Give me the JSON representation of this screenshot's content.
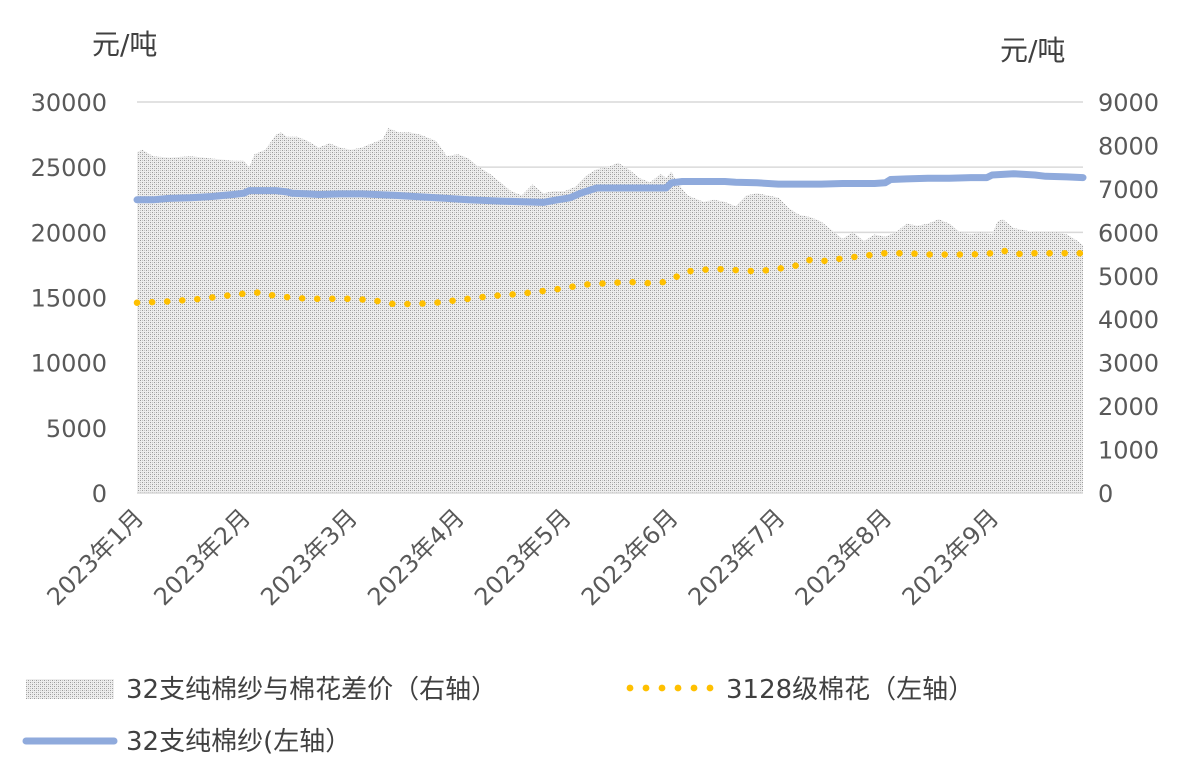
{
  "chart_data": {
    "type": "line",
    "left_unit": "元/吨",
    "right_unit": "元/吨",
    "left_axis": {
      "min": 0,
      "max": 30000,
      "ticks": [
        "0",
        "5000",
        "10000",
        "15000",
        "20000",
        "25000",
        "30000"
      ]
    },
    "right_axis": {
      "min": 0,
      "max": 9000,
      "ticks": [
        "0",
        "1000",
        "2000",
        "3000",
        "4000",
        "5000",
        "6000",
        "7000",
        "8000",
        "9000"
      ]
    },
    "x_labels": [
      "2023年1月",
      "2023年2月",
      "2023年3月",
      "2023年4月",
      "2023年5月",
      "2023年6月",
      "2023年7月",
      "2023年8月",
      "2023年9月"
    ],
    "x_domain": [
      0,
      8.85
    ],
    "series": [
      {
        "name": "32支纯棉纱与棉花差价（右轴）",
        "axis": "right",
        "style": "area",
        "color": "#bfbfbf",
        "points": [
          [
            0,
            7850
          ],
          [
            0.05,
            7900
          ],
          [
            0.15,
            7750
          ],
          [
            0.3,
            7720
          ],
          [
            0.5,
            7750
          ],
          [
            0.7,
            7700
          ],
          [
            0.9,
            7650
          ],
          [
            1.0,
            7650
          ],
          [
            1.05,
            7500
          ],
          [
            1.1,
            7800
          ],
          [
            1.2,
            7900
          ],
          [
            1.3,
            8250
          ],
          [
            1.35,
            8300
          ],
          [
            1.4,
            8200
          ],
          [
            1.5,
            8200
          ],
          [
            1.6,
            8100
          ],
          [
            1.7,
            7950
          ],
          [
            1.8,
            8050
          ],
          [
            1.9,
            7950
          ],
          [
            2.0,
            7900
          ],
          [
            2.1,
            7950
          ],
          [
            2.2,
            8050
          ],
          [
            2.3,
            8150
          ],
          [
            2.35,
            8400
          ],
          [
            2.45,
            8300
          ],
          [
            2.55,
            8300
          ],
          [
            2.65,
            8250
          ],
          [
            2.8,
            8100
          ],
          [
            2.9,
            7750
          ],
          [
            3.0,
            7800
          ],
          [
            3.1,
            7700
          ],
          [
            3.2,
            7500
          ],
          [
            3.3,
            7350
          ],
          [
            3.4,
            7150
          ],
          [
            3.5,
            6950
          ],
          [
            3.6,
            6850
          ],
          [
            3.7,
            7100
          ],
          [
            3.8,
            6900
          ],
          [
            3.9,
            6950
          ],
          [
            4.0,
            6950
          ],
          [
            4.1,
            7050
          ],
          [
            4.2,
            7300
          ],
          [
            4.3,
            7450
          ],
          [
            4.4,
            7500
          ],
          [
            4.5,
            7600
          ],
          [
            4.6,
            7450
          ],
          [
            4.7,
            7250
          ],
          [
            4.8,
            7150
          ],
          [
            4.9,
            7350
          ],
          [
            4.95,
            7250
          ],
          [
            5.0,
            7400
          ],
          [
            5.05,
            7150
          ],
          [
            5.15,
            6850
          ],
          [
            5.3,
            6700
          ],
          [
            5.4,
            6750
          ],
          [
            5.5,
            6700
          ],
          [
            5.6,
            6600
          ],
          [
            5.7,
            6850
          ],
          [
            5.8,
            6900
          ],
          [
            5.9,
            6850
          ],
          [
            6.0,
            6800
          ],
          [
            6.1,
            6550
          ],
          [
            6.2,
            6400
          ],
          [
            6.3,
            6350
          ],
          [
            6.4,
            6250
          ],
          [
            6.5,
            6050
          ],
          [
            6.6,
            5850
          ],
          [
            6.7,
            6000
          ],
          [
            6.8,
            5800
          ],
          [
            6.9,
            5950
          ],
          [
            7.0,
            5900
          ],
          [
            7.1,
            6000
          ],
          [
            7.2,
            6200
          ],
          [
            7.3,
            6150
          ],
          [
            7.4,
            6200
          ],
          [
            7.5,
            6300
          ],
          [
            7.6,
            6200
          ],
          [
            7.7,
            6000
          ],
          [
            7.8,
            5950
          ],
          [
            7.9,
            6000
          ],
          [
            8.0,
            5950
          ],
          [
            8.05,
            6250
          ],
          [
            8.1,
            6300
          ],
          [
            8.2,
            6100
          ],
          [
            8.3,
            6050
          ],
          [
            8.4,
            6000
          ],
          [
            8.5,
            6000
          ],
          [
            8.6,
            6000
          ],
          [
            8.7,
            5950
          ],
          [
            8.8,
            5800
          ],
          [
            8.85,
            5700
          ]
        ]
      },
      {
        "name": "3128级棉花（左轴）",
        "axis": "left",
        "style": "dotted",
        "color": "#ffc000",
        "points": [
          [
            0,
            14600
          ],
          [
            0.3,
            14700
          ],
          [
            0.6,
            14900
          ],
          [
            0.9,
            15200
          ],
          [
            1.1,
            15400
          ],
          [
            1.2,
            15300
          ],
          [
            1.3,
            15100
          ],
          [
            1.6,
            14900
          ],
          [
            2.0,
            14900
          ],
          [
            2.2,
            14800
          ],
          [
            2.4,
            14500
          ],
          [
            2.6,
            14500
          ],
          [
            2.8,
            14600
          ],
          [
            3.0,
            14800
          ],
          [
            3.3,
            15100
          ],
          [
            3.6,
            15300
          ],
          [
            3.9,
            15600
          ],
          [
            4.2,
            16000
          ],
          [
            4.4,
            16100
          ],
          [
            4.6,
            16200
          ],
          [
            4.8,
            16100
          ],
          [
            4.95,
            16200
          ],
          [
            5.05,
            16600
          ],
          [
            5.15,
            17000
          ],
          [
            5.4,
            17200
          ],
          [
            5.6,
            17100
          ],
          [
            5.8,
            17000
          ],
          [
            6.0,
            17200
          ],
          [
            6.2,
            17500
          ],
          [
            6.3,
            17900
          ],
          [
            6.45,
            17800
          ],
          [
            6.6,
            18000
          ],
          [
            6.8,
            18200
          ],
          [
            7.0,
            18400
          ],
          [
            7.2,
            18400
          ],
          [
            7.4,
            18300
          ],
          [
            7.6,
            18300
          ],
          [
            7.8,
            18300
          ],
          [
            8.0,
            18400
          ],
          [
            8.1,
            18600
          ],
          [
            8.2,
            18400
          ],
          [
            8.3,
            18300
          ],
          [
            8.4,
            18400
          ],
          [
            8.6,
            18400
          ],
          [
            8.85,
            18400
          ]
        ]
      },
      {
        "name": "32支纯棉纱(左轴）",
        "axis": "left",
        "style": "solid",
        "color": "#8faadc",
        "points": [
          [
            0,
            22500
          ],
          [
            0.15,
            22500
          ],
          [
            0.3,
            22600
          ],
          [
            0.5,
            22650
          ],
          [
            0.7,
            22750
          ],
          [
            0.9,
            22900
          ],
          [
            1.0,
            23000
          ],
          [
            1.05,
            23200
          ],
          [
            1.3,
            23200
          ],
          [
            1.4,
            23100
          ],
          [
            1.45,
            23000
          ],
          [
            1.6,
            22950
          ],
          [
            1.7,
            22900
          ],
          [
            1.9,
            22950
          ],
          [
            2.1,
            22950
          ],
          [
            2.4,
            22850
          ],
          [
            2.7,
            22700
          ],
          [
            2.9,
            22600
          ],
          [
            3.1,
            22500
          ],
          [
            3.4,
            22400
          ],
          [
            3.6,
            22350
          ],
          [
            3.8,
            22300
          ],
          [
            3.9,
            22450
          ],
          [
            4.05,
            22650
          ],
          [
            4.15,
            23000
          ],
          [
            4.3,
            23400
          ],
          [
            4.5,
            23400
          ],
          [
            4.9,
            23400
          ],
          [
            4.95,
            23400
          ],
          [
            5.0,
            23800
          ],
          [
            5.1,
            23900
          ],
          [
            5.3,
            23900
          ],
          [
            5.5,
            23900
          ],
          [
            5.6,
            23850
          ],
          [
            5.8,
            23800
          ],
          [
            6.0,
            23700
          ],
          [
            6.2,
            23700
          ],
          [
            6.4,
            23700
          ],
          [
            6.6,
            23750
          ],
          [
            6.9,
            23750
          ],
          [
            7.0,
            23800
          ],
          [
            7.05,
            24050
          ],
          [
            7.2,
            24100
          ],
          [
            7.4,
            24150
          ],
          [
            7.6,
            24150
          ],
          [
            7.8,
            24200
          ],
          [
            7.95,
            24200
          ],
          [
            8.0,
            24400
          ],
          [
            8.2,
            24500
          ],
          [
            8.4,
            24400
          ],
          [
            8.5,
            24300
          ],
          [
            8.7,
            24250
          ],
          [
            8.85,
            24200
          ]
        ]
      }
    ],
    "legend": {
      "position": "bottom",
      "items": [
        {
          "label": "32支纯棉纱与棉花差价（右轴）",
          "style": "area",
          "color": "#bfbfbf"
        },
        {
          "label": "3128级棉花（左轴）",
          "style": "dotted",
          "color": "#ffc000"
        },
        {
          "label": "32支纯棉纱(左轴）",
          "style": "solid",
          "color": "#8faadc"
        }
      ]
    },
    "grid": true,
    "gridline_color": "#d9d9d9"
  }
}
